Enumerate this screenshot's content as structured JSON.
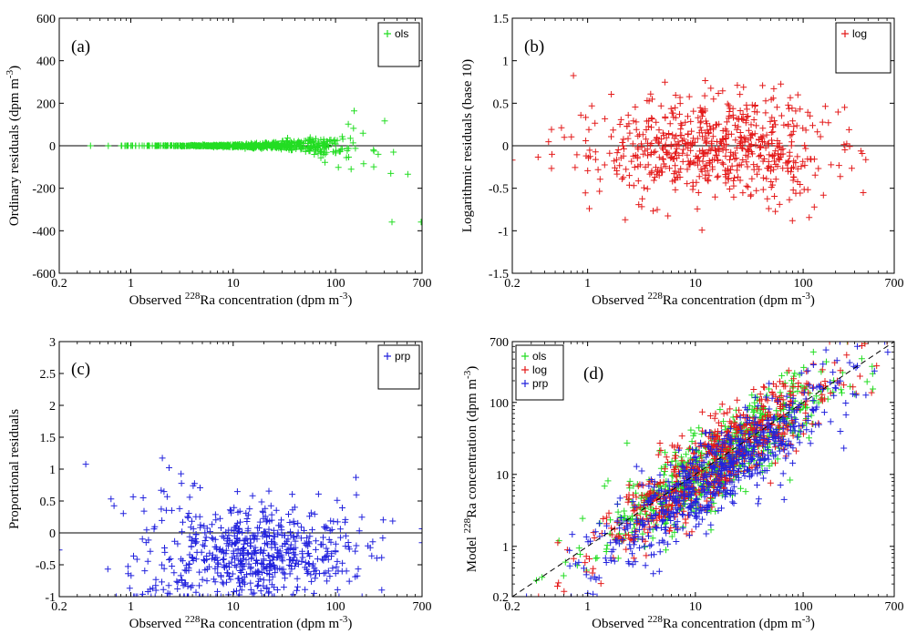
{
  "chart_data": [
    {
      "id": "a",
      "type": "scatter",
      "panel_label": "(a)",
      "xscale": "log",
      "xlim": [
        0.2,
        700
      ],
      "xticks": [
        0.2,
        1,
        10,
        100,
        700
      ],
      "xtick_labels": [
        "0.2",
        "1",
        "10",
        "100",
        "700"
      ],
      "ylim": [
        -600,
        600
      ],
      "yticks": [
        -600,
        -400,
        -200,
        0,
        200,
        400,
        600
      ],
      "ytick_labels": [
        "-600",
        "-400",
        "-200",
        "0",
        "200",
        "400",
        "600"
      ],
      "xlabel": {
        "pre": "Observed ",
        "sup": "228",
        "mid": "Ra concentration (dpm m",
        "sup2": "-3",
        "post": ")"
      },
      "ylabel": {
        "pre": "Ordinary residuals (dpm m",
        "sup": "-3",
        "post": ")"
      },
      "zero_line": 0,
      "legend": {
        "placement": "top-right",
        "entries": [
          "ols"
        ]
      },
      "series": [
        {
          "name": "ols",
          "color": "#22dd22",
          "marker": "plus",
          "pattern": "ols"
        }
      ]
    },
    {
      "id": "b",
      "type": "scatter",
      "panel_label": "(b)",
      "xscale": "log",
      "xlim": [
        0.2,
        700
      ],
      "xticks": [
        0.2,
        1,
        10,
        100,
        700
      ],
      "xtick_labels": [
        "0.2",
        "1",
        "10",
        "100",
        "700"
      ],
      "ylim": [
        -1.5,
        1.5
      ],
      "yticks": [
        -1.5,
        -1,
        -0.5,
        0,
        0.5,
        1,
        1.5
      ],
      "ytick_labels": [
        "-1.5",
        "-1",
        "-0.5",
        "0",
        "0.5",
        "1",
        "1.5"
      ],
      "xlabel": {
        "pre": "Observed ",
        "sup": "228",
        "mid": "Ra concentration (dpm m",
        "sup2": "-3",
        "post": ")"
      },
      "ylabel": {
        "pre": "Logarithmic residuals (base 10)",
        "sup": "",
        "post": ""
      },
      "zero_line": 0,
      "legend": {
        "placement": "top-right",
        "entries": [
          "log"
        ]
      },
      "series": [
        {
          "name": "log",
          "color": "#e41a1a",
          "marker": "plus",
          "pattern": "log"
        }
      ]
    },
    {
      "id": "c",
      "type": "scatter",
      "panel_label": "(c)",
      "xscale": "log",
      "xlim": [
        0.2,
        700
      ],
      "xticks": [
        0.2,
        1,
        10,
        100,
        700
      ],
      "xtick_labels": [
        "0.2",
        "1",
        "10",
        "100",
        "700"
      ],
      "ylim": [
        -1,
        3
      ],
      "yticks": [
        -1,
        -0.5,
        0,
        0.5,
        1,
        1.5,
        2,
        2.5,
        3
      ],
      "ytick_labels": [
        "-1",
        "-0.5",
        "0",
        "0.5",
        "1",
        "1.5",
        "2",
        "2.5",
        "3"
      ],
      "xlabel": {
        "pre": "Observed ",
        "sup": "228",
        "mid": "Ra concentration (dpm m",
        "sup2": "-3",
        "post": ")"
      },
      "ylabel": {
        "pre": "Proportional residuals",
        "sup": "",
        "post": ""
      },
      "zero_line": 0,
      "legend": {
        "placement": "top-right",
        "entries": [
          "prp"
        ]
      },
      "series": [
        {
          "name": "prp",
          "color": "#2222dd",
          "marker": "plus",
          "pattern": "prp"
        }
      ]
    },
    {
      "id": "d",
      "type": "scatter",
      "panel_label": "(d)",
      "xscale": "log",
      "yscale": "log",
      "xlim": [
        0.2,
        700
      ],
      "xticks": [
        0.2,
        1,
        10,
        100,
        700
      ],
      "xtick_labels": [
        "0.2",
        "1",
        "10",
        "100",
        "700"
      ],
      "ylim": [
        0.2,
        700
      ],
      "yticks": [
        0.2,
        1,
        10,
        100,
        700
      ],
      "ytick_labels": [
        "0.2",
        "1",
        "10",
        "100",
        "700"
      ],
      "xlabel": {
        "pre": "Observed ",
        "sup": "228",
        "mid": "Ra concentration (dpm m",
        "sup2": "-3",
        "post": ")"
      },
      "ylabel": {
        "pre": "Model ",
        "sup": "228",
        "post": "Ra concentration (dpm m-3)"
      },
      "one_to_one_line": true,
      "legend": {
        "placement": "top-left",
        "entries": [
          "ols",
          "log",
          "prp"
        ]
      },
      "series": [
        {
          "name": "ols",
          "color": "#22dd22",
          "marker": "plus",
          "pattern": "model_ols"
        },
        {
          "name": "log",
          "color": "#e41a1a",
          "marker": "plus",
          "pattern": "model_log"
        },
        {
          "name": "prp",
          "color": "#2222dd",
          "marker": "plus",
          "pattern": "model_prp"
        }
      ]
    }
  ]
}
